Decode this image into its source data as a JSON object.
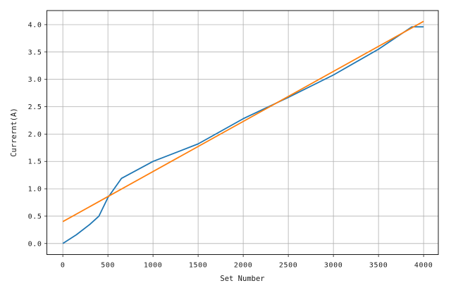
{
  "figure": {
    "xlabel": "Set Number",
    "ylabel": "Currernt(A)"
  },
  "chart_data": {
    "type": "line",
    "title": "",
    "xlabel": "Set Number",
    "ylabel": "Currernt(A)",
    "xlim": [
      -177,
      4163
    ],
    "ylim": [
      -0.202,
      4.257
    ],
    "grid": true,
    "legend_position": "none",
    "x_ticks": [
      0,
      500,
      1000,
      1500,
      2000,
      2500,
      3000,
      3500,
      4000
    ],
    "x_tick_labels": [
      "0",
      "500",
      "1000",
      "1500",
      "2000",
      "2500",
      "3000",
      "3500",
      "4000"
    ],
    "y_ticks": [
      0.0,
      0.5,
      1.0,
      1.5,
      2.0,
      2.5,
      3.0,
      3.5,
      4.0
    ],
    "y_tick_labels": [
      "0.0",
      "0.5",
      "1.0",
      "1.5",
      "2.0",
      "2.5",
      "3.0",
      "3.5",
      "4.0"
    ],
    "colors": {
      "series_blue": "#1f77b4",
      "series_orange": "#ff7f0e",
      "grid": "#b0b0b0",
      "axis": "#1a1a1a",
      "text": "#1a1a1a",
      "background": "#ffffff"
    },
    "series": [
      {
        "name": "series-blue",
        "color": "#1f77b4",
        "x": [
          0,
          150,
          300,
          400,
          500,
          650,
          1000,
          1500,
          2000,
          2500,
          3000,
          3500,
          3870,
          4000
        ],
        "y": [
          0.0,
          0.16,
          0.35,
          0.5,
          0.84,
          1.19,
          1.5,
          1.82,
          2.28,
          2.67,
          3.08,
          3.55,
          3.96,
          3.96
        ]
      },
      {
        "name": "series-orange",
        "color": "#ff7f0e",
        "x": [
          0,
          4000
        ],
        "y": [
          0.4,
          4.06
        ]
      }
    ]
  }
}
